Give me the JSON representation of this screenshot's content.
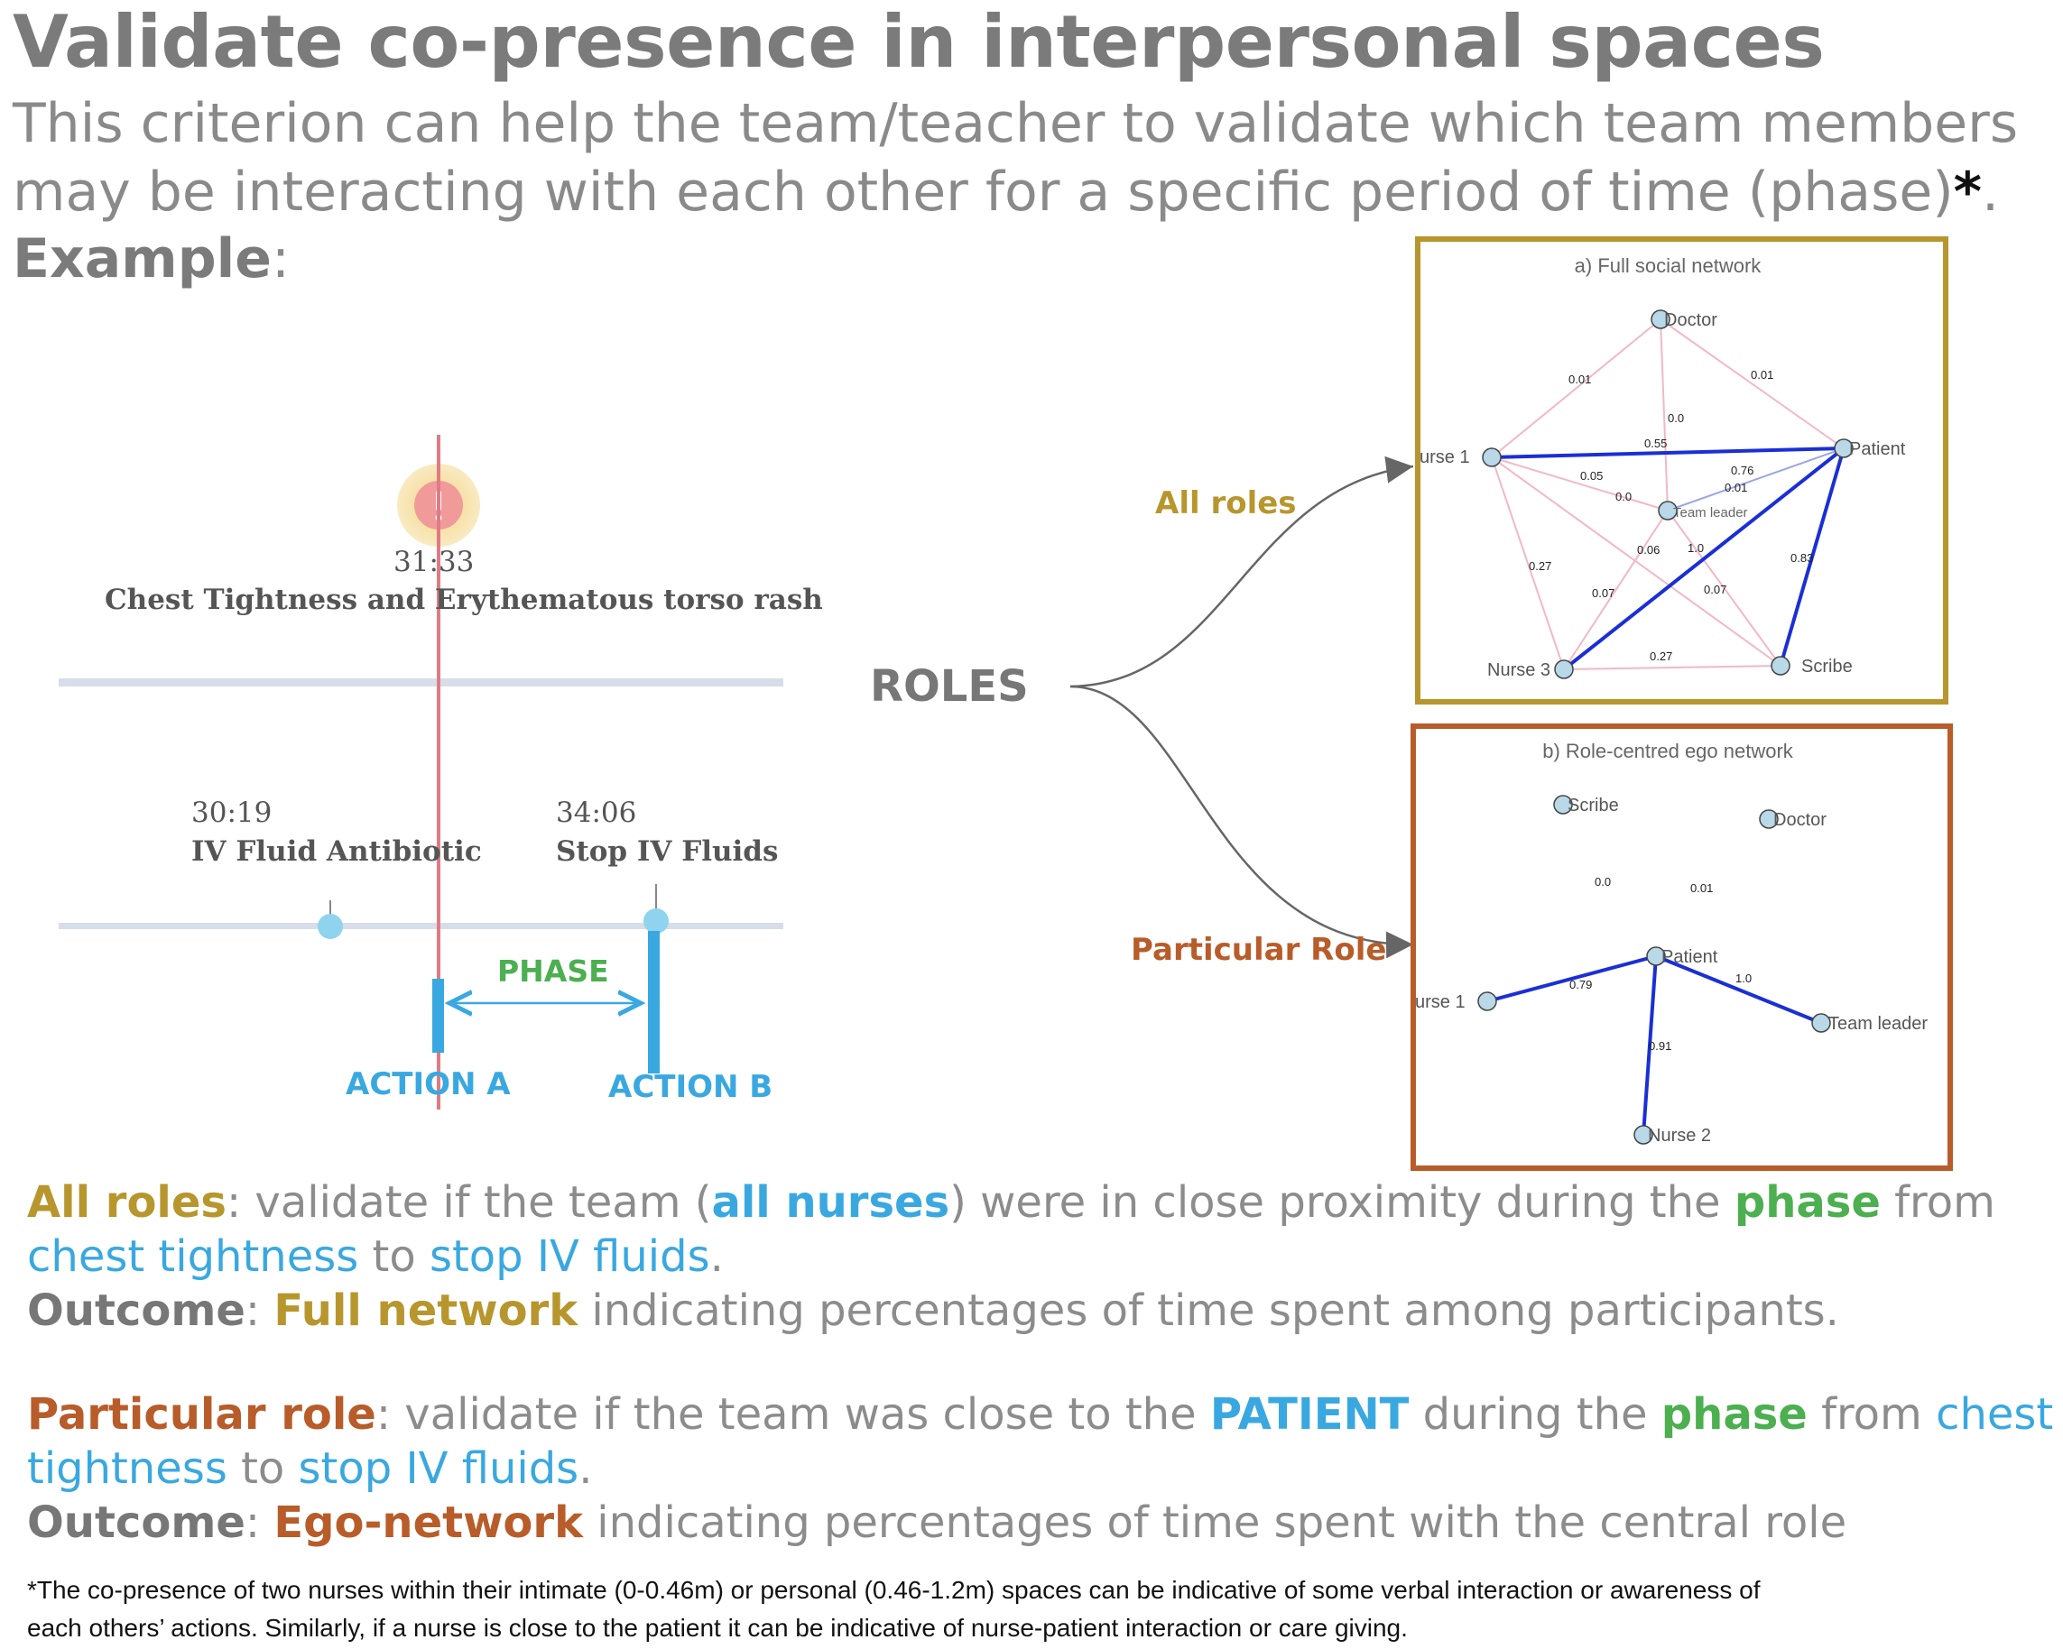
{
  "title": "Validate co-presence in interpersonal spaces",
  "intro": {
    "line1": "This criterion can help the team/teacher to validate which team members",
    "line2": "may be interacting with each other for a specific period of time (phase)",
    "star": "*",
    "period": ".",
    "example_bold": "Example",
    "example_colon": ":"
  },
  "timeline": {
    "alert_time": "31:33",
    "alert_label": "Chest Tightness and Erythematous torso rash",
    "alert_icon": "exclamation-icon",
    "event1_time": "30:19",
    "event1_label": "IV Fluid Antibiotic",
    "event2_time": "34:06",
    "event2_label": "Stop IV Fluids",
    "phase_label": "PHASE",
    "action_a": "ACTION A",
    "action_b": "ACTION B"
  },
  "roles_label": "ROLES",
  "callouts": {
    "all_roles": "All roles",
    "particular_role": "Particular Role"
  },
  "network_a": {
    "title": "a) Full social network",
    "nodes": [
      {
        "id": "doctor",
        "label": "Doctor"
      },
      {
        "id": "nurse1",
        "label": "urse 1"
      },
      {
        "id": "patient",
        "label": "Patient"
      },
      {
        "id": "teamleader",
        "label": "Team leader"
      },
      {
        "id": "nurse3",
        "label": "Nurse 3"
      },
      {
        "id": "scribe",
        "label": "Scribe"
      }
    ],
    "edge_labels": [
      "0.01",
      "0.01",
      "0.0",
      "0.55",
      "0.05",
      "0.76",
      "0.01",
      "0.0",
      "0.06",
      "1.0",
      "0.27",
      "0.83",
      "0.07",
      "0.07",
      "0.27"
    ],
    "strong_edges": [
      {
        "from": "nurse1",
        "to": "patient"
      },
      {
        "from": "patient",
        "to": "nurse3"
      },
      {
        "from": "patient",
        "to": "scribe"
      }
    ]
  },
  "network_b": {
    "title": "b) Role-centred ego network",
    "nodes": [
      {
        "id": "scribe",
        "label": "Scribe"
      },
      {
        "id": "doctor",
        "label": "Doctor"
      },
      {
        "id": "patient",
        "label": "Patient"
      },
      {
        "id": "nurse1",
        "label": "urse 1"
      },
      {
        "id": "teamleader",
        "label": "Team leader"
      },
      {
        "id": "nurse2",
        "label": "Nurse 2"
      }
    ],
    "edge_labels": [
      "0.0",
      "0.01",
      "0.79",
      "1.0",
      "0.91"
    ],
    "strong_edges": [
      {
        "from": "patient",
        "to": "nurse1"
      },
      {
        "from": "patient",
        "to": "teamleader"
      },
      {
        "from": "patient",
        "to": "nurse2"
      }
    ]
  },
  "desc_all": {
    "lead": "All roles",
    "t1": ": validate if the team (",
    "hl1": "all nurses",
    "t2": ") were  in close proximity during the ",
    "phase": "phase",
    "t3": " from",
    "link1": "chest tightness",
    "t4": " to ",
    "link2": "stop IV fluids",
    "t5": ".",
    "outcome": "Outcome",
    "colon": ": ",
    "net": "Full network",
    "rest": " indicating percentages of time spent among participants."
  },
  "desc_particular": {
    "lead": "Particular role",
    "t1": ": validate if the team was close to the ",
    "hl1": "PATIENT",
    "t2": " during the ",
    "phase": "phase",
    "t3": " from ",
    "link1a": "chest",
    "link1b": "tightness",
    "t4": " to ",
    "link2": "stop IV fluids",
    "t5": ".",
    "outcome": "Outcome",
    "colon": ": ",
    "net": "Ego-network",
    "rest": " indicating percentages of time spent with the central role"
  },
  "footnote": {
    "line1": "*The co-presence of two nurses within their intimate (0-0.46m) or personal (0.46-1.2m) spaces can be indicative of some verbal interaction or awareness of",
    "line2": "each others’ actions. Similarly, if a nurse is close to the patient it can be indicative of nurse-patient interaction or care giving."
  },
  "colors": {
    "title_gray": "#7b7b7b",
    "blue": "#3aa8e0",
    "green": "#4caf50",
    "gold": "#b8962e",
    "rust": "#b85c2a",
    "edge_blue": "#1a2fd6",
    "edge_pink": "#f2b8c6",
    "node_fill": "#b9d8e8"
  }
}
